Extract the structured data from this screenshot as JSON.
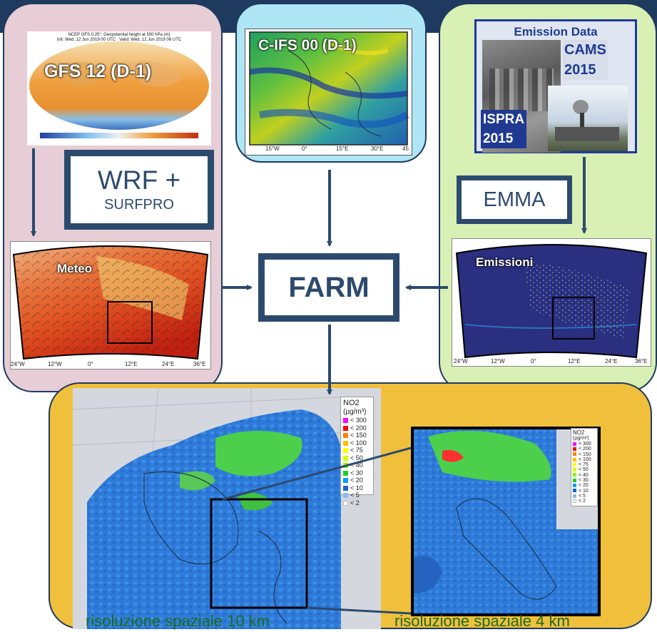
{
  "panels": {
    "gfs": {
      "label": "GFS 12 (D-1)",
      "header_line1": "NCEP GFS 0.25°: Geopotential height at 500 hPa (m)",
      "header_line2": "Init: Wed, 12 Jun 2019 00 UTC",
      "header_line3": "Valid: Wed, 12 Jun 2019 06 UTC"
    },
    "cifs": {
      "label": "C-IFS 00 (D-1)",
      "ticks": [
        "15°W",
        "0°",
        "15°E",
        "30°E",
        "45"
      ]
    },
    "emission": {
      "title": "Emission Data",
      "cams": "CAMS",
      "cams_year": "2015",
      "ispra": "ISPRA",
      "ispra_year": "2015"
    }
  },
  "boxes": {
    "wrf_line1": "WRF +",
    "wrf_line2": "SURFPRO",
    "emma": "EMMA",
    "farm": "FARM"
  },
  "maps": {
    "meteo": {
      "label": "Meteo",
      "ticks": [
        "24°W",
        "12°W",
        "0°",
        "12°E",
        "24°E",
        "36°E"
      ]
    },
    "emissioni": {
      "label": "Emissioni",
      "ticks": [
        "24°W",
        "12°W",
        "0°",
        "12°E",
        "24°E",
        "36°E"
      ]
    }
  },
  "no2_big": {
    "title": "NO2",
    "unit": "(µg/m³)",
    "levels": [
      "< 300",
      "< 200",
      "< 150",
      "< 100",
      "< 75",
      "< 50",
      "< 40",
      "< 30",
      "< 20",
      "< 10",
      "< 5",
      "< 2"
    ]
  },
  "no2_small": {
    "title": "NO2",
    "unit": "(µg/m³)",
    "levels": [
      "< 300",
      "< 200",
      "< 150",
      "< 100",
      "< 75",
      "< 50",
      "< 40",
      "< 30",
      "< 20",
      "< 10",
      "< 5",
      "< 2"
    ]
  },
  "captions": {
    "res10": "risoluzione spaziale 10 km",
    "res4": "risoluzione spaziale 4 km"
  },
  "colors": {
    "panel_border": "#1f3a5f",
    "arrow": "#2c4a6e",
    "legend": [
      "#ff00ff",
      "#ff0000",
      "#ff8000",
      "#ffc000",
      "#ffff00",
      "#d0ff00",
      "#80ff00",
      "#20d020",
      "#00a0ff",
      "#2060d0",
      "#88bbee",
      "#ffffff"
    ]
  }
}
